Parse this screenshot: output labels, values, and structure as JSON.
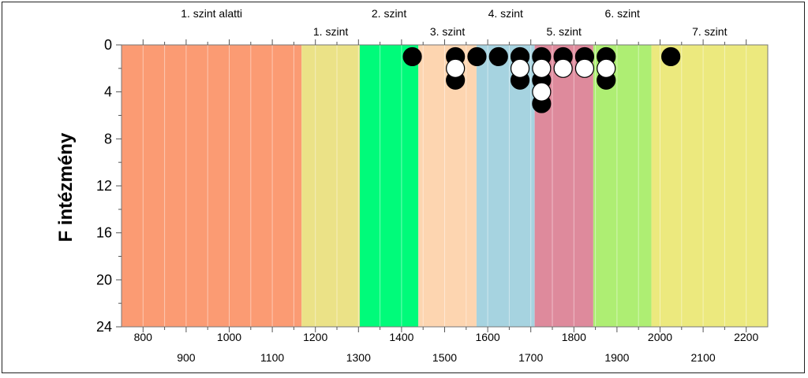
{
  "chart_data": {
    "type": "scatter",
    "title": "",
    "xlabel": "",
    "ylabel": "F intézmény",
    "xlim": [
      750,
      2250
    ],
    "ylim": [
      0,
      24
    ],
    "y_inverted": true,
    "x_ticks_top_row": [
      "800",
      "1000",
      "1200",
      "1400",
      "1600",
      "1800",
      "2000",
      "2200"
    ],
    "x_ticks_bottom_row": [
      "900",
      "1100",
      "1300",
      "1500",
      "1700",
      "1900",
      "2100"
    ],
    "y_ticks": [
      "0",
      "4",
      "8",
      "12",
      "16",
      "20",
      "24"
    ],
    "grid": "vertical minor lines every 50 points",
    "levels": [
      {
        "label": "1. szint alatti",
        "start": 750,
        "end": 1168,
        "color": "#fb9b73",
        "label_row": "top"
      },
      {
        "label": "1. szint",
        "start": 1168,
        "end": 1303,
        "color": "#ebe287",
        "label_row": "bottom"
      },
      {
        "label": "2. szint",
        "start": 1303,
        "end": 1439,
        "color": "#00fb7a",
        "label_row": "top"
      },
      {
        "label": "3. szint",
        "start": 1439,
        "end": 1574,
        "color": "#fdd5b0",
        "label_row": "bottom"
      },
      {
        "label": "4. szint",
        "start": 1574,
        "end": 1709,
        "color": "#a6d3e0",
        "label_row": "top"
      },
      {
        "label": "5. szint",
        "start": 1709,
        "end": 1845,
        "color": "#de8a9c",
        "label_row": "bottom"
      },
      {
        "label": "6. szint",
        "start": 1845,
        "end": 1980,
        "color": "#aeee73",
        "label_row": "top"
      },
      {
        "label": "7. szint",
        "start": 1980,
        "end": 2250,
        "color": "#ece97e",
        "label_row": "bottom"
      }
    ],
    "series": [
      {
        "fill": "#000000",
        "points": [
          {
            "x": 1425,
            "y": 1
          },
          {
            "x": 1525,
            "y": 1
          },
          {
            "x": 1525,
            "y": 3
          },
          {
            "x": 1575,
            "y": 1
          },
          {
            "x": 1625,
            "y": 1
          },
          {
            "x": 1675,
            "y": 1
          },
          {
            "x": 1675,
            "y": 3
          },
          {
            "x": 1725,
            "y": 1
          },
          {
            "x": 1725,
            "y": 3
          },
          {
            "x": 1725,
            "y": 5
          },
          {
            "x": 1775,
            "y": 1
          },
          {
            "x": 1825,
            "y": 1
          },
          {
            "x": 1875,
            "y": 1
          },
          {
            "x": 1875,
            "y": 3
          },
          {
            "x": 2025,
            "y": 1
          }
        ]
      },
      {
        "fill": "#ffffff",
        "points": [
          {
            "x": 1525,
            "y": 2
          },
          {
            "x": 1675,
            "y": 2
          },
          {
            "x": 1725,
            "y": 2
          },
          {
            "x": 1725,
            "y": 4
          },
          {
            "x": 1775,
            "y": 2
          },
          {
            "x": 1825,
            "y": 2
          },
          {
            "x": 1875,
            "y": 2
          }
        ]
      }
    ]
  }
}
